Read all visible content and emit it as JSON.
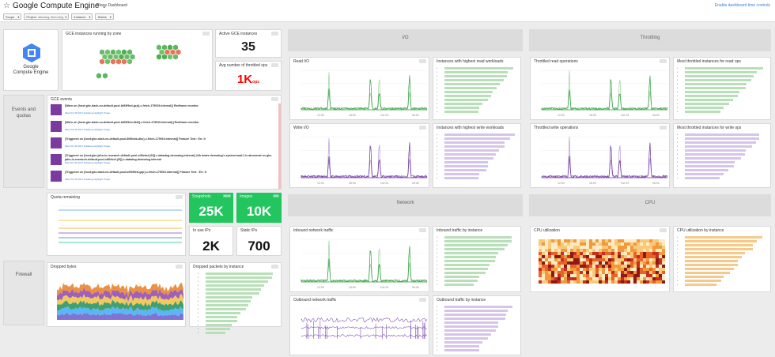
{
  "header": {
    "title": "Google Compute Engine",
    "clone_label": "Clone Dashboard",
    "enable_label": "Enable dashboard time controls",
    "filters": [
      {
        "label": "Scope",
        "value": ""
      },
      {
        "label": "Project",
        "value": "datadog-demodog"
      },
      {
        "label": "Instance",
        "value": ""
      },
      {
        "label": "Status",
        "value": ""
      }
    ]
  },
  "logo": {
    "line1": "Google",
    "line2": "Compute Engine"
  },
  "hexmap": {
    "title": "GCE instances running by zone"
  },
  "active_instances": {
    "title": "Active GCE instances",
    "value": "35"
  },
  "throttled_ops": {
    "title": "Avg number of throttled ops",
    "value": "1K",
    "unit": "ops"
  },
  "events_section": {
    "label": "Events and quotas"
  },
  "events_panel": {
    "title": "GCE events",
    "items": [
      {
        "text": "[Warn on {host:gke-dash-eu-default-pool-b6f3f9ed-gzjr}.c.fetch-175919.internal}] Redframe monitor"
      },
      {
        "text": "[Warn on {host:gke-dash-eu-default-pool-b6f3f9ed-dk6l}.c.fetch-175919.internal}] Redframe monitor"
      },
      {
        "text": "[Triggered on {host:gke-dash-eu-default-pool-8f89cbb-dbc}.c.fetch-175919.internal}] Feature Test : Err. It"
      },
      {
        "text": "[Triggered on {host:gke-jahn-in-research-default-pool-ctf6ebcf-j2f]}.c.datadog-demodog.internal} 24h beats demodog's system.load.1 is abnormal on gke-jahn-in-research-default-pool-ctf6ebcf-j2f]}.c.datadog-demodog.internal"
      },
      {
        "text": "[Triggered on {host:gke-dash-eu-default-pool-b6f3f9ed-gzjr}.c.fetch-175919.internal}] Feature Test : Err. It"
      }
    ],
    "sub": "Wed Oct 25 2017 Datadog Highlight Triage"
  },
  "quota": {
    "title": "Quota remaining"
  },
  "snapshots": {
    "title": "Snapshots",
    "badge": "SNAP",
    "value": "25K"
  },
  "images": {
    "title": "Images",
    "badge": "IMG",
    "value": "10K"
  },
  "in_use_ips": {
    "title": "In use IPs",
    "value": "2K"
  },
  "static_ips": {
    "title": "Static IPs",
    "value": "700"
  },
  "firewall_section": {
    "label": "Firewall"
  },
  "dropped_bytes": {
    "title": "Dropped bytes"
  },
  "dropped_packets": {
    "title": "Dropped packets by instance"
  },
  "io_section": {
    "label": "I/O"
  },
  "throttling_section": {
    "label": "Throttling"
  },
  "network_section": {
    "label": "Network"
  },
  "cpu_section": {
    "label": "CPU"
  },
  "read_io": {
    "title": "Read I/O"
  },
  "read_workloads": {
    "title": "Instances with highest read workloads"
  },
  "write_io": {
    "title": "Write I/O"
  },
  "write_workloads": {
    "title": "Instances with highest write workloads"
  },
  "throttled_read": {
    "title": "Throttled read operations"
  },
  "most_throttled_read": {
    "title": "Most throttled instances for read ops"
  },
  "throttled_write": {
    "title": "Throttled write operations"
  },
  "most_throttled_write": {
    "title": "Most throttled instances for write ops"
  },
  "inbound": {
    "title": "Inbound network traffic"
  },
  "inbound_by_instance": {
    "title": "Inbound traffic by instance"
  },
  "outbound": {
    "title": "Outbound network traffic"
  },
  "outbound_by_instance": {
    "title": "Outbound traffic by instance"
  },
  "cpu_util": {
    "title": "CPU utilization"
  },
  "cpu_by_instance": {
    "title": "CPU utilization by instance"
  },
  "time_ticks": [
    "12:00",
    "18:00",
    "Oct 29",
    "06:00"
  ],
  "colors": {
    "green": "#2e9e3a",
    "purple": "#6a2fa0",
    "bignum_red": "#ff0000",
    "tile_green": "#22c55e",
    "link": "#3c7fd6"
  }
}
